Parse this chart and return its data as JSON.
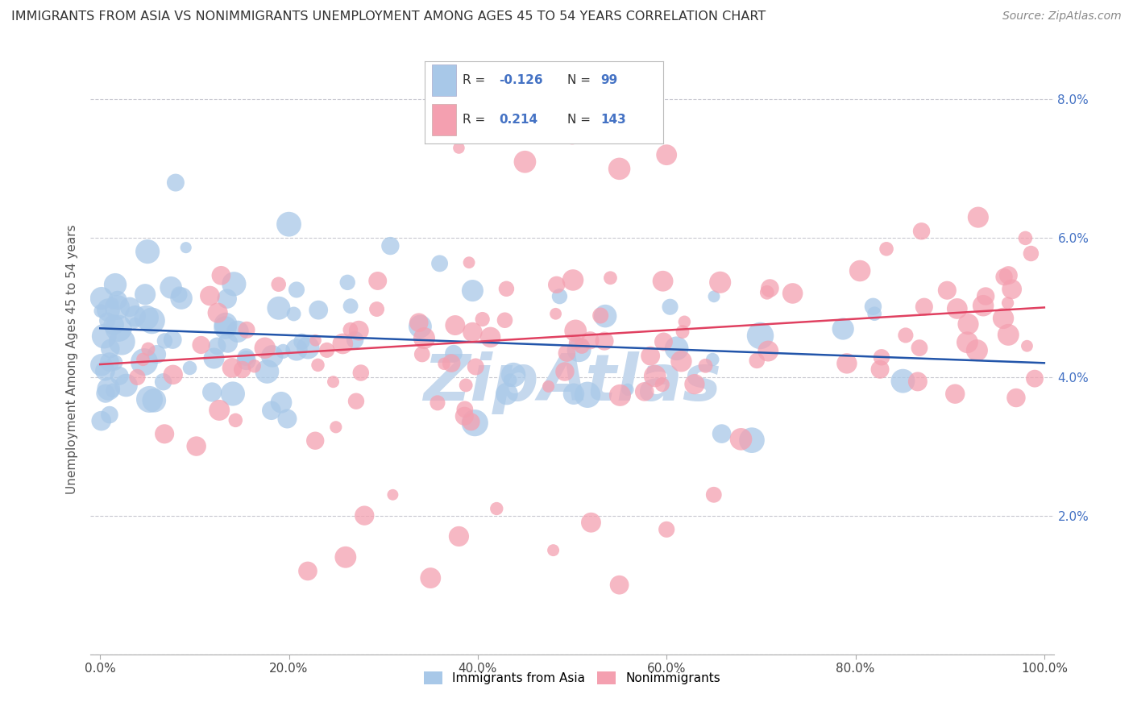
{
  "title": "IMMIGRANTS FROM ASIA VS NONIMMIGRANTS UNEMPLOYMENT AMONG AGES 45 TO 54 YEARS CORRELATION CHART",
  "source": "Source: ZipAtlas.com",
  "ylabel": "Unemployment Among Ages 45 to 54 years",
  "xlim": [
    0,
    100
  ],
  "ylim": [
    0,
    8.5
  ],
  "yticks": [
    0,
    2,
    4,
    6,
    8
  ],
  "xticks": [
    0,
    20,
    40,
    60,
    80,
    100
  ],
  "xtick_labels": [
    "0.0%",
    "20.0%",
    "40.0%",
    "60.0%",
    "80.0%",
    "100.0%"
  ],
  "right_ytick_labels": [
    "",
    "2.0%",
    "4.0%",
    "6.0%",
    "8.0%"
  ],
  "legend_R_blue": "-0.126",
  "legend_N_blue": "99",
  "legend_R_pink": "0.214",
  "legend_N_pink": "143",
  "blue_color": "#a8c8e8",
  "pink_color": "#f4a0b0",
  "trend_blue_color": "#2255aa",
  "trend_pink_color": "#e04060",
  "grid_color": "#c8c8d0",
  "background": "#ffffff",
  "right_tick_color": "#4472c4",
  "watermark_color": "#c5d8ed",
  "title_color": "#333333",
  "source_color": "#888888",
  "ylabel_color": "#555555"
}
